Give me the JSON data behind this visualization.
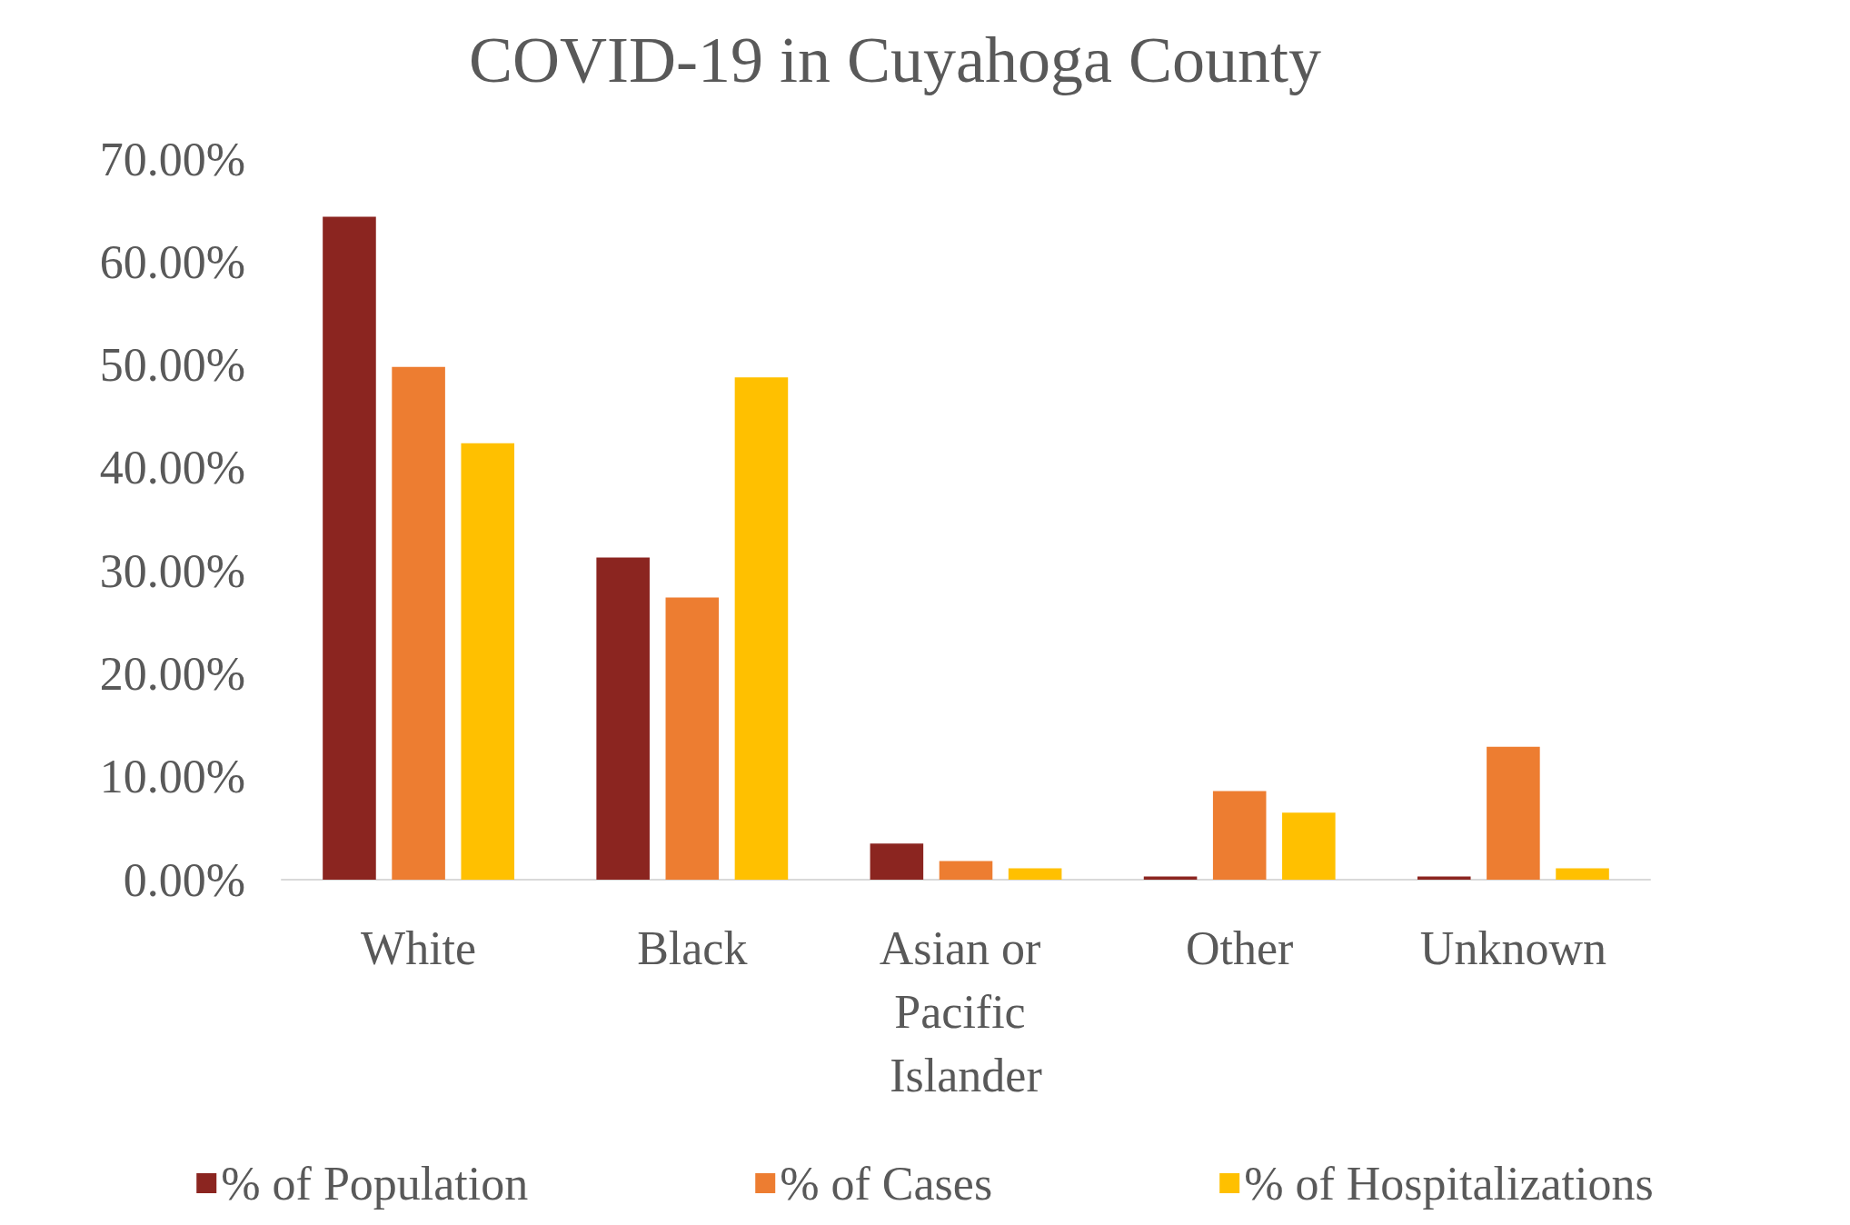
{
  "chart_data": {
    "type": "bar",
    "title": "COVID-19 in Cuyahoga County",
    "categories": [
      "White",
      "Black",
      "Asian or Pacific Islander",
      "Other",
      "Unknown"
    ],
    "series": [
      {
        "name": "% of Population",
        "color": "#8b2520",
        "values": [
          64.4,
          31.3,
          3.5,
          0.3,
          0.3
        ]
      },
      {
        "name": "% of Cases",
        "color": "#ed7d31",
        "values": [
          49.8,
          27.4,
          1.8,
          8.6,
          12.9
        ]
      },
      {
        "name": "% of Hospitalizations",
        "color": "#ffc000",
        "values": [
          42.4,
          48.8,
          1.1,
          6.5,
          1.1
        ]
      }
    ],
    "ylim": [
      0,
      70
    ],
    "yticks": [
      {
        "value": 0,
        "label": "0.00%"
      },
      {
        "value": 10,
        "label": "10.00%"
      },
      {
        "value": 20,
        "label": "20.00%"
      },
      {
        "value": 30,
        "label": "30.00%"
      },
      {
        "value": 40,
        "label": "40.00%"
      },
      {
        "value": 50,
        "label": "50.00%"
      },
      {
        "value": 60,
        "label": "60.00%"
      },
      {
        "value": 70,
        "label": "70.00%"
      }
    ],
    "grid": false,
    "legend": "bottom"
  }
}
